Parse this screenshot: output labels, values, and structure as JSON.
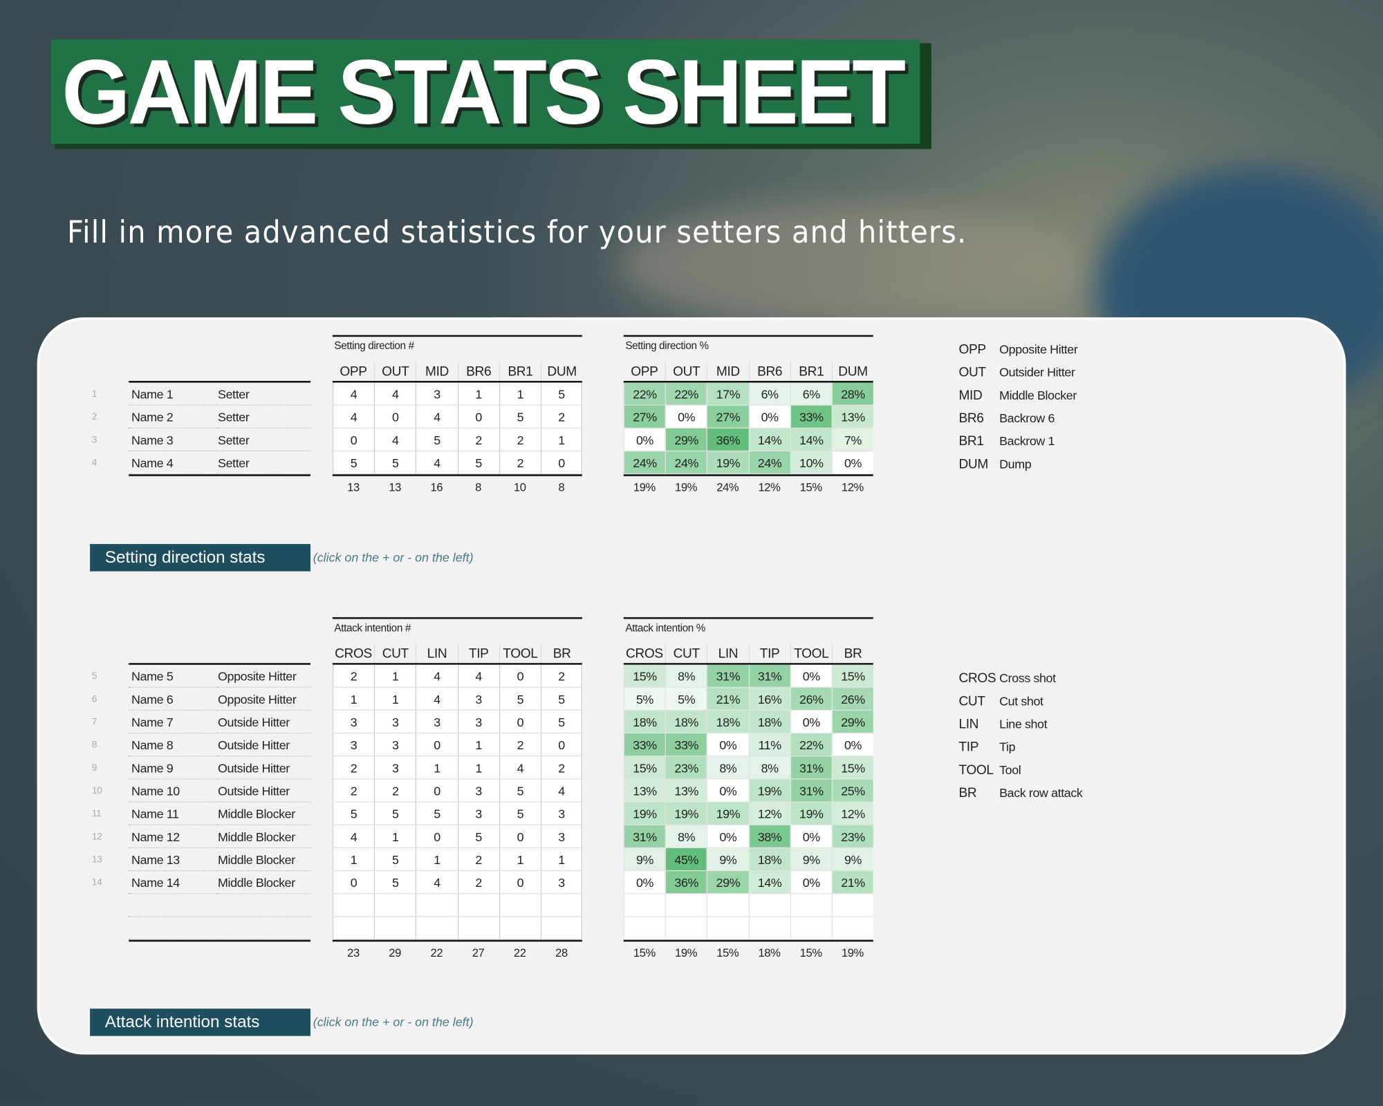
{
  "header": {
    "title": "GAME STATS SHEET",
    "subtitle": "Fill in more advanced statistics for your setters and hitters."
  },
  "sections": [
    {
      "count_title": "Setting direction #",
      "pct_title": "Setting direction %",
      "columns": [
        "OPP",
        "OUT",
        "MID",
        "BR6",
        "BR1",
        "DUM"
      ],
      "rows": [
        {
          "num": 1,
          "name": "Name 1",
          "role": "Setter",
          "counts": [
            4,
            4,
            3,
            1,
            1,
            5
          ],
          "pcts": [
            "22%",
            "22%",
            "17%",
            "6%",
            "6%",
            "28%"
          ]
        },
        {
          "num": 2,
          "name": "Name 2",
          "role": "Setter",
          "counts": [
            4,
            0,
            4,
            0,
            5,
            2
          ],
          "pcts": [
            "27%",
            "0%",
            "27%",
            "0%",
            "33%",
            "13%"
          ]
        },
        {
          "num": 3,
          "name": "Name 3",
          "role": "Setter",
          "counts": [
            0,
            4,
            5,
            2,
            2,
            1
          ],
          "pcts": [
            "0%",
            "29%",
            "36%",
            "14%",
            "14%",
            "7%"
          ]
        },
        {
          "num": 4,
          "name": "Name 4",
          "role": "Setter",
          "counts": [
            5,
            5,
            4,
            5,
            2,
            0
          ],
          "pcts": [
            "24%",
            "24%",
            "19%",
            "24%",
            "10%",
            "0%"
          ]
        }
      ],
      "count_totals": [
        13,
        13,
        16,
        8,
        10,
        8
      ],
      "pct_totals": [
        "19%",
        "19%",
        "24%",
        "12%",
        "15%",
        "12%"
      ],
      "button": "Setting direction stats",
      "hint": "(click on the + or - on the left)",
      "legend": [
        [
          "OPP",
          "Opposite Hitter"
        ],
        [
          "OUT",
          "Outsider Hitter"
        ],
        [
          "MID",
          "Middle Blocker"
        ],
        [
          "BR6",
          "Backrow 6"
        ],
        [
          "BR1",
          "Backrow 1"
        ],
        [
          "DUM",
          "Dump"
        ]
      ]
    },
    {
      "count_title": "Attack intention #",
      "pct_title": "Attack intention %",
      "columns": [
        "CROS",
        "CUT",
        "LIN",
        "TIP",
        "TOOL",
        "BR"
      ],
      "rows": [
        {
          "num": 5,
          "name": "Name 5",
          "role": "Opposite Hitter",
          "counts": [
            2,
            1,
            4,
            4,
            0,
            2
          ],
          "pcts": [
            "15%",
            "8%",
            "31%",
            "31%",
            "0%",
            "15%"
          ]
        },
        {
          "num": 6,
          "name": "Name 6",
          "role": "Opposite Hitter",
          "counts": [
            1,
            1,
            4,
            3,
            5,
            5
          ],
          "pcts": [
            "5%",
            "5%",
            "21%",
            "16%",
            "26%",
            "26%"
          ]
        },
        {
          "num": 7,
          "name": "Name 7",
          "role": "Outside Hitter",
          "counts": [
            3,
            3,
            3,
            3,
            0,
            5
          ],
          "pcts": [
            "18%",
            "18%",
            "18%",
            "18%",
            "0%",
            "29%"
          ]
        },
        {
          "num": 8,
          "name": "Name 8",
          "role": "Outside Hitter",
          "counts": [
            3,
            3,
            0,
            1,
            2,
            0
          ],
          "pcts": [
            "33%",
            "33%",
            "0%",
            "11%",
            "22%",
            "0%"
          ]
        },
        {
          "num": 9,
          "name": "Name 9",
          "role": "Outside Hitter",
          "counts": [
            2,
            3,
            1,
            1,
            4,
            2
          ],
          "pcts": [
            "15%",
            "23%",
            "8%",
            "8%",
            "31%",
            "15%"
          ]
        },
        {
          "num": 10,
          "name": "Name 10",
          "role": "Outside Hitter",
          "counts": [
            2,
            2,
            0,
            3,
            5,
            4
          ],
          "pcts": [
            "13%",
            "13%",
            "0%",
            "19%",
            "31%",
            "25%"
          ]
        },
        {
          "num": 11,
          "name": "Name 11",
          "role": "Middle Blocker",
          "counts": [
            5,
            5,
            5,
            3,
            5,
            3
          ],
          "pcts": [
            "19%",
            "19%",
            "19%",
            "12%",
            "19%",
            "12%"
          ]
        },
        {
          "num": 12,
          "name": "Name 12",
          "role": "Middle Blocker",
          "counts": [
            4,
            1,
            0,
            5,
            0,
            3
          ],
          "pcts": [
            "31%",
            "8%",
            "0%",
            "38%",
            "0%",
            "23%"
          ]
        },
        {
          "num": 13,
          "name": "Name 13",
          "role": "Middle Blocker",
          "counts": [
            1,
            5,
            1,
            2,
            1,
            1
          ],
          "pcts": [
            "9%",
            "45%",
            "9%",
            "18%",
            "9%",
            "9%"
          ]
        },
        {
          "num": 14,
          "name": "Name 14",
          "role": "Middle Blocker",
          "counts": [
            0,
            5,
            4,
            2,
            0,
            3
          ],
          "pcts": [
            "0%",
            "36%",
            "29%",
            "14%",
            "0%",
            "21%"
          ]
        }
      ],
      "count_totals": [
        23,
        29,
        22,
        27,
        22,
        28
      ],
      "pct_totals": [
        "15%",
        "19%",
        "15%",
        "18%",
        "15%",
        "19%"
      ],
      "button": "Attack intention stats",
      "hint": "(click on the + or - on the left)",
      "legend": [
        [
          "CROS",
          "Cross shot"
        ],
        [
          "CUT",
          "Cut shot"
        ],
        [
          "LIN",
          "Line shot"
        ],
        [
          "TIP",
          "Tip"
        ],
        [
          "TOOL",
          "Tool"
        ],
        [
          "BR",
          "Back row attack"
        ]
      ]
    }
  ]
}
